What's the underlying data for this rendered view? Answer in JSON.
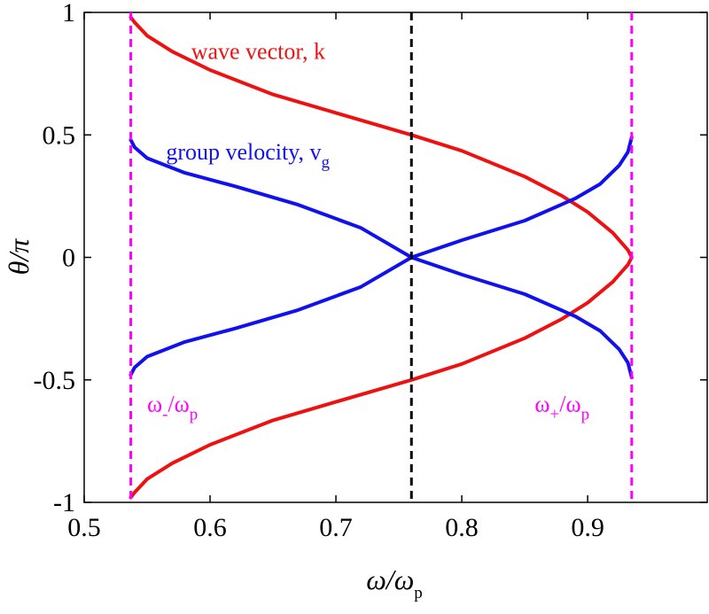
{
  "chart_data": {
    "type": "line",
    "xlabel": {
      "main": "ω/ω",
      "sub": "p"
    },
    "ylabel": "θ/π",
    "xlim": [
      0.5,
      0.995
    ],
    "ylim": [
      -1,
      1
    ],
    "x_ticks": [
      0.5,
      0.6,
      0.7,
      0.8,
      0.9
    ],
    "x_tick_labels": [
      "0.5",
      "0.6",
      "0.7",
      "0.8",
      "0.9"
    ],
    "y_ticks": [
      -1,
      -0.5,
      0,
      0.5,
      1
    ],
    "y_tick_labels": [
      "-1",
      "-0.5",
      "0",
      "0.5",
      "1"
    ],
    "grid": false,
    "colors": {
      "red": "#ee1111",
      "blue": "#1111ee",
      "magenta": "#ff00ff",
      "black": "#000000"
    },
    "series": [
      {
        "color": "red",
        "points": [
          [
            0.537,
            0.98
          ],
          [
            0.54,
            0.96
          ],
          [
            0.55,
            0.905
          ],
          [
            0.57,
            0.84
          ],
          [
            0.6,
            0.765
          ],
          [
            0.65,
            0.665
          ],
          [
            0.7,
            0.59
          ],
          [
            0.76,
            0.5
          ],
          [
            0.8,
            0.435
          ],
          [
            0.85,
            0.33
          ],
          [
            0.88,
            0.25
          ],
          [
            0.9,
            0.185
          ],
          [
            0.92,
            0.1
          ],
          [
            0.932,
            0.03
          ],
          [
            0.935,
            0.0
          ],
          [
            0.932,
            -0.03
          ],
          [
            0.92,
            -0.1
          ],
          [
            0.9,
            -0.185
          ],
          [
            0.88,
            -0.25
          ],
          [
            0.85,
            -0.33
          ],
          [
            0.8,
            -0.435
          ],
          [
            0.76,
            -0.5
          ],
          [
            0.7,
            -0.59
          ],
          [
            0.65,
            -0.665
          ],
          [
            0.6,
            -0.765
          ],
          [
            0.57,
            -0.84
          ],
          [
            0.55,
            -0.905
          ],
          [
            0.54,
            -0.96
          ],
          [
            0.537,
            -0.98
          ]
        ]
      },
      {
        "color": "blue",
        "points": [
          [
            0.537,
            0.48
          ],
          [
            0.54,
            0.45
          ],
          [
            0.55,
            0.405
          ],
          [
            0.58,
            0.345
          ],
          [
            0.62,
            0.29
          ],
          [
            0.67,
            0.215
          ],
          [
            0.72,
            0.12
          ],
          [
            0.76,
            0.0
          ],
          [
            0.8,
            -0.07
          ],
          [
            0.85,
            -0.15
          ],
          [
            0.89,
            -0.24
          ],
          [
            0.91,
            -0.3
          ],
          [
            0.925,
            -0.375
          ],
          [
            0.932,
            -0.43
          ],
          [
            0.935,
            -0.49
          ]
        ]
      },
      {
        "color": "blue",
        "points": [
          [
            0.537,
            -0.48
          ],
          [
            0.54,
            -0.45
          ],
          [
            0.55,
            -0.405
          ],
          [
            0.58,
            -0.345
          ],
          [
            0.62,
            -0.29
          ],
          [
            0.67,
            -0.215
          ],
          [
            0.72,
            -0.12
          ],
          [
            0.76,
            0.0
          ],
          [
            0.8,
            0.07
          ],
          [
            0.85,
            0.15
          ],
          [
            0.89,
            0.24
          ],
          [
            0.91,
            0.3
          ],
          [
            0.925,
            0.375
          ],
          [
            0.932,
            0.43
          ],
          [
            0.935,
            0.49
          ]
        ]
      }
    ],
    "vertical_lines": [
      {
        "x": 0.537,
        "color": "magenta",
        "style": "dashed"
      },
      {
        "x": 0.76,
        "color": "black",
        "style": "dashed"
      },
      {
        "x": 0.935,
        "color": "magenta",
        "style": "dashed"
      }
    ],
    "annotations": [
      {
        "text": "wave vector, k",
        "color": "red",
        "x": 0.585,
        "y": 0.81
      },
      {
        "text": "group velocity, v",
        "sub": "g",
        "color": "blue",
        "x": 0.565,
        "y": 0.4
      },
      {
        "text": "ω",
        "sub": "-",
        "tail": "/ω",
        "tail_sub": "p",
        "color": "magenta",
        "x": 0.55,
        "y": -0.63
      },
      {
        "text": "ω",
        "sub": "+",
        "tail": "/ω",
        "tail_sub": "p",
        "color": "magenta",
        "x": 0.858,
        "y": -0.63
      }
    ]
  }
}
